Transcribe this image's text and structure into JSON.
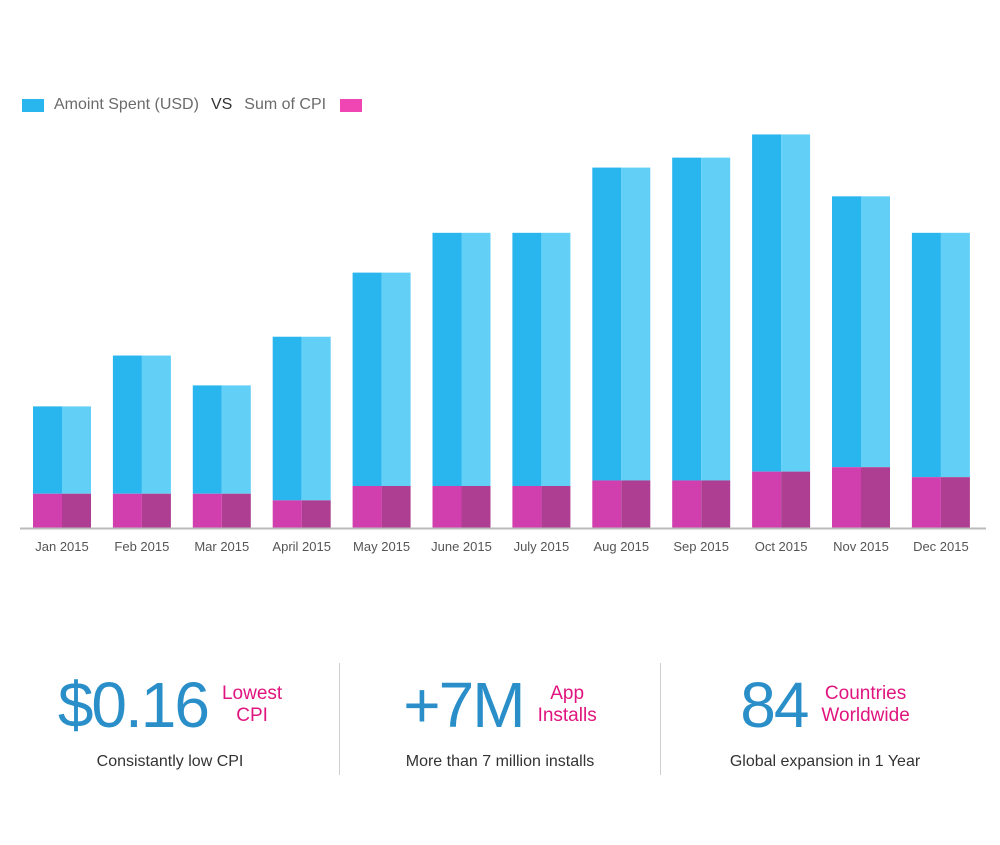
{
  "legend": {
    "series1_label": "Amoint Spent (USD)",
    "vs_label": "VS",
    "series2_label": "Sum of CPI"
  },
  "colors": {
    "blue_dark": "#29b5ee",
    "blue_light": "#62cff7",
    "pink_dark": "#d13fae",
    "pink_light": "#ad3e91",
    "axis": "#bbbbbb",
    "stat_number": "#2a8fc9",
    "stat_accent": "#e0157f"
  },
  "chart_data": {
    "type": "bar",
    "stacked": true,
    "categories": [
      "Jan 2015",
      "Feb 2015",
      "Mar 2015",
      "April 2015",
      "May 2015",
      "June 2015",
      "July 2015",
      "Aug 2015",
      "Sep 2015",
      "Oct 2015",
      "Nov 2015",
      "Dec 2015"
    ],
    "series": [
      {
        "name": "Sum of CPI",
        "values": [
          31,
          31,
          31,
          25,
          38,
          38,
          38,
          43,
          43,
          51,
          55,
          46
        ]
      },
      {
        "name": "Amoint Spent (USD)",
        "values": [
          79,
          125,
          98,
          148,
          193,
          229,
          229,
          283,
          292,
          305,
          245,
          221
        ]
      }
    ],
    "ylim": [
      0,
      360
    ],
    "legend_position": "top-left",
    "grid": false
  },
  "stats": [
    {
      "number": "$0.16",
      "label_line1": "Lowest",
      "label_line2": "CPI",
      "description": "Consistantly low CPI"
    },
    {
      "number": "+7M",
      "label_line1": "App",
      "label_line2": "Installs",
      "description": "More than 7 million installs"
    },
    {
      "number": "84",
      "label_line1": "Countries",
      "label_line2": "Worldwide",
      "description": "Global expansion in 1 Year"
    }
  ]
}
